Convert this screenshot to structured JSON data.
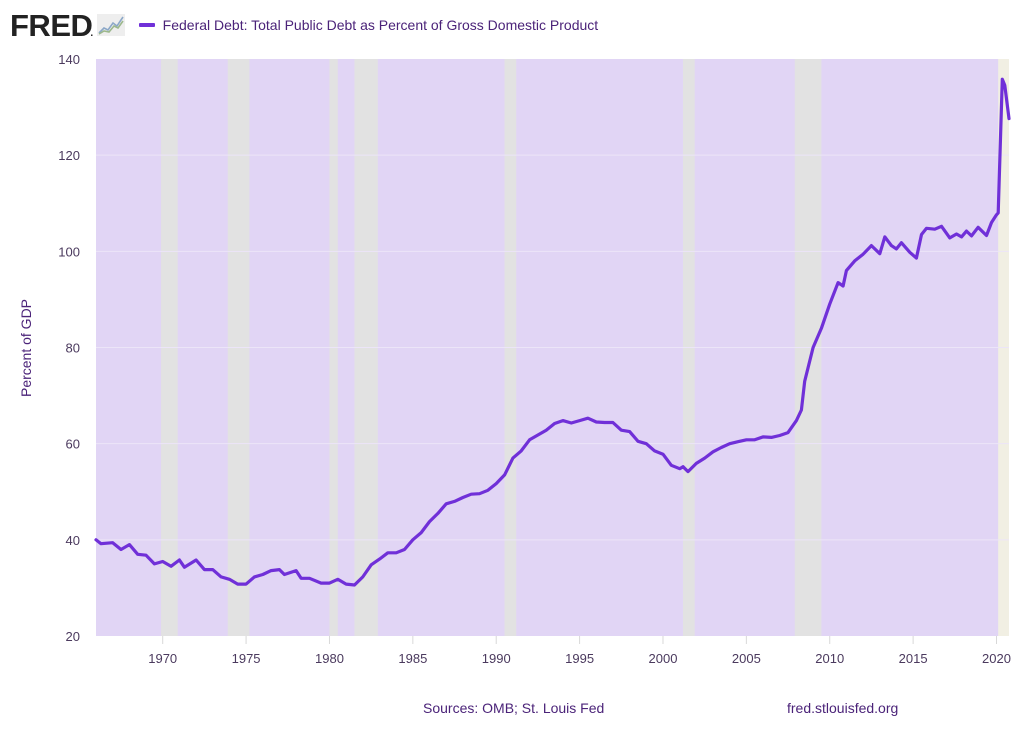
{
  "header": {
    "logo_text": "FRED",
    "logo_icon": "line-graph-icon",
    "legend_label": "Federal Debt: Total Public Debt as Percent of Gross Domestic Product"
  },
  "footer": {
    "sources": "Sources: OMB; St. Louis Fed",
    "url": "fred.stlouisfed.org"
  },
  "colors": {
    "series_line": "#7030d8",
    "plot_background": "#e1d5f5",
    "recession_band": "#e2e2e2",
    "recession_band_current": "#f1efe3",
    "gridline": "#ece5f8",
    "text": "#4b2379"
  },
  "chart_data": {
    "type": "line",
    "title": "Federal Debt: Total Public Debt as Percent of Gross Domestic Product",
    "xlabel": "",
    "ylabel": "Percent of GDP",
    "xlim": [
      1966.0,
      2020.75
    ],
    "ylim": [
      20,
      140
    ],
    "grid": true,
    "legend_placement": "top-left",
    "x_ticks": [
      1970,
      1975,
      1980,
      1985,
      1990,
      1995,
      2000,
      2005,
      2010,
      2015,
      2020
    ],
    "x_tick_labels": [
      "1970",
      "1975",
      "1980",
      "1985",
      "1990",
      "1995",
      "2000",
      "2005",
      "2010",
      "2015",
      "2020"
    ],
    "y_ticks": [
      20,
      40,
      60,
      80,
      100,
      120,
      140
    ],
    "y_tick_labels": [
      "20",
      "40",
      "60",
      "80",
      "100",
      "120",
      "140"
    ],
    "recessions": [
      {
        "start": 1969.9,
        "end": 1970.9
      },
      {
        "start": 1973.9,
        "end": 1975.2
      },
      {
        "start": 1980.0,
        "end": 1980.5
      },
      {
        "start": 1981.5,
        "end": 1982.9
      },
      {
        "start": 1990.5,
        "end": 1991.2
      },
      {
        "start": 2001.2,
        "end": 2001.9
      },
      {
        "start": 2007.9,
        "end": 2009.5
      },
      {
        "start": 2020.1,
        "end": 2020.75,
        "current": true
      }
    ],
    "series": [
      {
        "name": "Federal Debt: Total Public Debt as Percent of Gross Domestic Product",
        "x": [
          1966.0,
          1966.3,
          1967.0,
          1967.5,
          1968.0,
          1968.5,
          1969.0,
          1969.5,
          1970.0,
          1970.5,
          1971.0,
          1971.3,
          1972.0,
          1972.5,
          1973.0,
          1973.5,
          1974.0,
          1974.5,
          1975.0,
          1975.5,
          1976.0,
          1976.5,
          1977.0,
          1977.3,
          1978.0,
          1978.3,
          1978.8,
          1979.5,
          1980.0,
          1980.5,
          1981.0,
          1981.5,
          1982.0,
          1982.5,
          1983.0,
          1983.5,
          1984.0,
          1984.5,
          1985.0,
          1985.5,
          1986.0,
          1986.5,
          1987.0,
          1987.5,
          1988.0,
          1988.5,
          1989.0,
          1989.5,
          1990.0,
          1990.5,
          1991.0,
          1991.5,
          1992.0,
          1992.5,
          1993.0,
          1993.5,
          1994.0,
          1994.5,
          1995.0,
          1995.5,
          1996.0,
          1996.5,
          1997.0,
          1997.5,
          1998.0,
          1998.5,
          1999.0,
          1999.5,
          2000.0,
          2000.5,
          2001.0,
          2001.2,
          2001.5,
          2002.0,
          2002.5,
          2003.0,
          2003.5,
          2004.0,
          2004.5,
          2005.0,
          2005.5,
          2006.0,
          2006.5,
          2007.0,
          2007.5,
          2008.0,
          2008.3,
          2008.5,
          2009.0,
          2009.5,
          2010.0,
          2010.5,
          2010.8,
          2011.0,
          2011.5,
          2012.0,
          2012.5,
          2013.0,
          2013.3,
          2013.7,
          2014.0,
          2014.3,
          2014.8,
          2015.2,
          2015.5,
          2015.8,
          2016.3,
          2016.7,
          2017.2,
          2017.6,
          2017.9,
          2018.2,
          2018.5,
          2018.9,
          2019.4,
          2019.7,
          2020.0,
          2020.1,
          2020.35,
          2020.5,
          2020.75
        ],
        "values": [
          40.0,
          39.2,
          39.4,
          38.0,
          39.0,
          37.0,
          36.8,
          35.0,
          35.5,
          34.5,
          35.8,
          34.3,
          35.8,
          33.8,
          33.8,
          32.3,
          31.8,
          30.8,
          30.8,
          32.3,
          32.8,
          33.6,
          33.8,
          32.8,
          33.6,
          32.0,
          32.0,
          31.0,
          31.0,
          31.8,
          30.8,
          30.6,
          32.3,
          34.8,
          36.0,
          37.3,
          37.3,
          38.0,
          40.0,
          41.5,
          43.8,
          45.5,
          47.5,
          48.0,
          48.8,
          49.5,
          49.6,
          50.3,
          51.7,
          53.5,
          57.0,
          58.5,
          60.8,
          61.8,
          62.8,
          64.2,
          64.8,
          64.3,
          64.8,
          65.3,
          64.5,
          64.4,
          64.4,
          62.8,
          62.5,
          60.5,
          60.0,
          58.5,
          57.8,
          55.5,
          54.8,
          55.2,
          54.2,
          55.9,
          57.0,
          58.3,
          59.2,
          60.0,
          60.4,
          60.8,
          60.8,
          61.4,
          61.3,
          61.7,
          62.3,
          64.8,
          67.0,
          73.0,
          80.0,
          84.0,
          89.0,
          93.5,
          92.8,
          96.0,
          98.0,
          99.4,
          101.2,
          99.5,
          103.0,
          101.2,
          100.5,
          101.8,
          99.8,
          98.6,
          103.5,
          104.8,
          104.6,
          105.2,
          102.8,
          103.6,
          103.0,
          104.2,
          103.2,
          105.0,
          103.3,
          106.0,
          107.6,
          108.0,
          135.8,
          134.5,
          127.6
        ]
      }
    ]
  }
}
